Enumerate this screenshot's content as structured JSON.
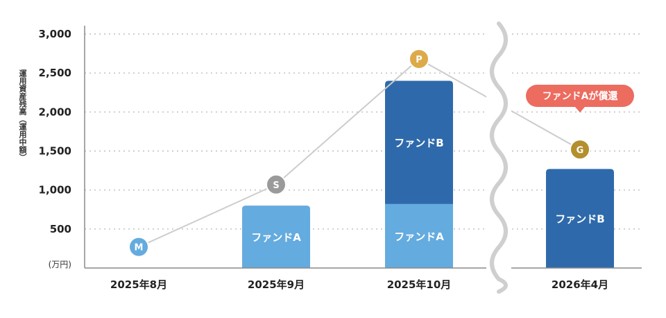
{
  "chart_data": {
    "type": "bar",
    "ylabel": "運用資産残高（運用中額）",
    "unit": "(万円)",
    "ylim": [
      0,
      3000
    ],
    "yticks": [
      {
        "value": 500,
        "label": "500"
      },
      {
        "value": 1000,
        "label": "1,000"
      },
      {
        "value": 1500,
        "label": "1,500"
      },
      {
        "value": 2000,
        "label": "2,000"
      },
      {
        "value": 2500,
        "label": "2,500"
      },
      {
        "value": 3000,
        "label": "3,000"
      }
    ],
    "grid": true,
    "categories": [
      "2025年8月",
      "2025年9月",
      "2025年10月",
      "2026年4月"
    ],
    "series": [
      {
        "name": "ファンドA",
        "color": "#64abdf",
        "values": [
          0,
          800,
          820,
          0
        ]
      },
      {
        "name": "ファンドB",
        "color": "#2e6aab",
        "values": [
          0,
          0,
          1580,
          1270
        ]
      }
    ],
    "line": {
      "color": "#cccccc",
      "points": [
        {
          "category": "2025年8月",
          "value": 270,
          "marker": "M",
          "color": "#64abdf"
        },
        {
          "category": "2025年9月",
          "value": 1070,
          "marker": "S",
          "color": "#9a9a9a"
        },
        {
          "category": "2025年10月",
          "value": 2680,
          "marker": "P",
          "color": "#ddaa4a"
        },
        {
          "category": "2026年4月",
          "value": 1520,
          "marker": "G",
          "color": "#b38f2d"
        }
      ]
    },
    "axis_break": {
      "between": [
        "2025年10月",
        "2026年4月"
      ],
      "color": "#cfcfcf"
    },
    "annotation": {
      "text": "ファンドAが償還",
      "category": "2026年4月",
      "color": "#ec6c5f"
    }
  }
}
